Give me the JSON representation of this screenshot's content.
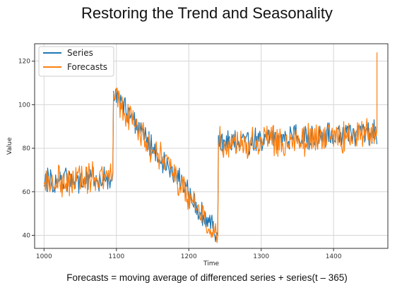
{
  "slide": {
    "title": "Restoring the Trend and Seasonality",
    "caption": "Forecasts = moving average of differenced series + series(t – 365)"
  },
  "chart_data": {
    "type": "line",
    "xlabel": "Time",
    "ylabel": "Value",
    "xlim": [
      987,
      1475
    ],
    "ylim": [
      34,
      128
    ],
    "xticks": [
      1000,
      1100,
      1200,
      1300,
      1400
    ],
    "yticks": [
      40,
      60,
      80,
      100,
      120
    ],
    "grid": true,
    "legend": "top-left",
    "series": [
      {
        "name": "Series",
        "color": "#1f77b4",
        "segments": [
          {
            "x": [
              1000,
              1095
            ],
            "start": 65,
            "end": 66
          },
          {
            "x": [
              1096,
              1240
            ],
            "start": 105,
            "end": 41
          },
          {
            "x": [
              1241,
              1460
            ],
            "start": 82,
            "end": 88
          }
        ],
        "noise_amplitude": 5
      },
      {
        "name": "Forecasts",
        "color": "#ff7f0e",
        "segments": [
          {
            "x": [
              1000,
              1095
            ],
            "start": 64,
            "end": 68
          },
          {
            "x": [
              1096,
              1240
            ],
            "start": 104,
            "end": 40
          },
          {
            "x": [
              1241,
              1460
            ],
            "start": 82,
            "end": 86
          }
        ],
        "noise_amplitude": 6,
        "final_spike": {
          "x": 1460,
          "y": 124
        }
      }
    ]
  }
}
